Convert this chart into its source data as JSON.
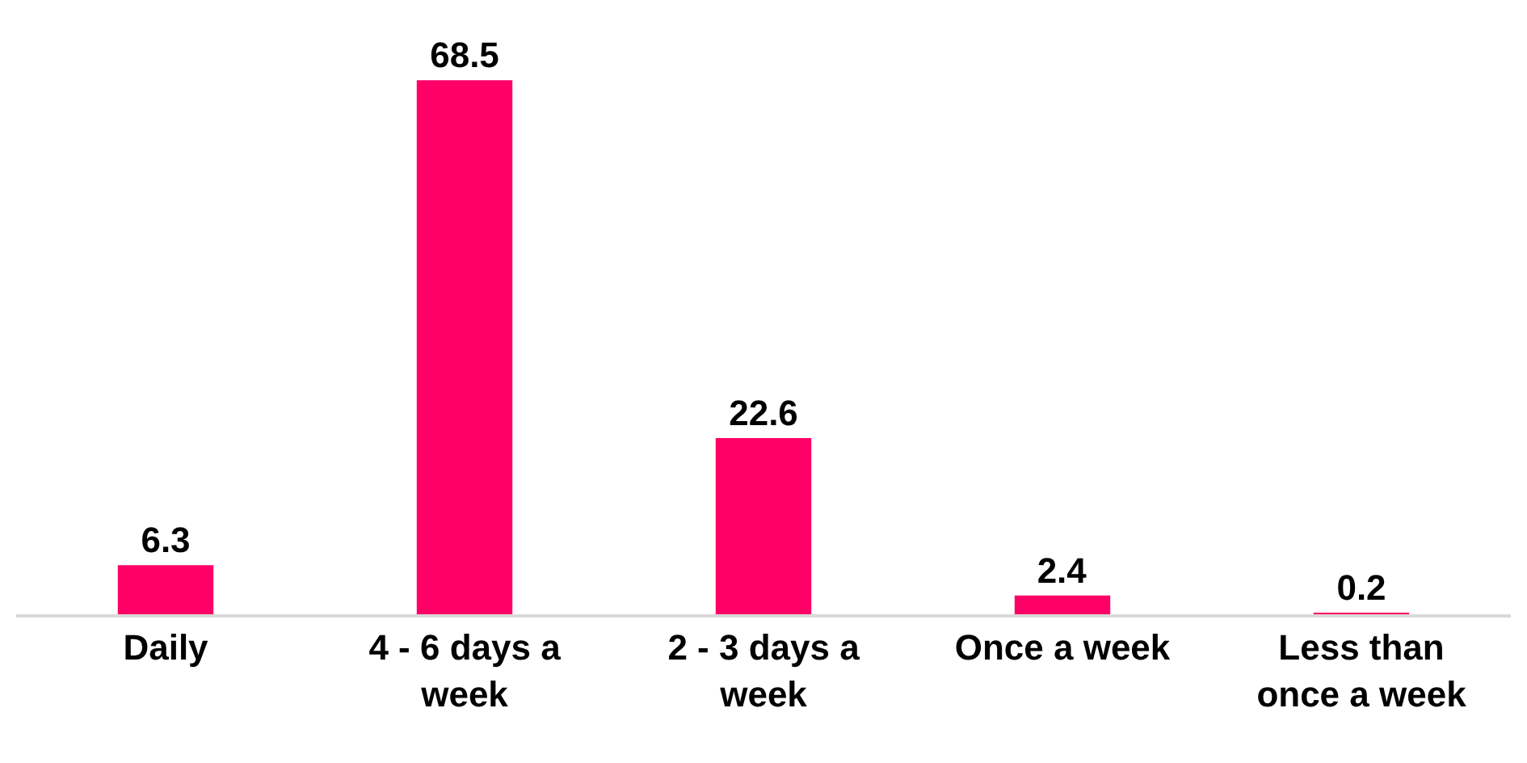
{
  "chart_data": {
    "type": "bar",
    "categories": [
      "Daily",
      "4 - 6 days a week",
      "2 - 3 days a week",
      "Once a week",
      "Less than once a week"
    ],
    "values": [
      6.3,
      68.5,
      22.6,
      2.4,
      0.2
    ],
    "color": "#ff0066",
    "data_labels": true
  }
}
